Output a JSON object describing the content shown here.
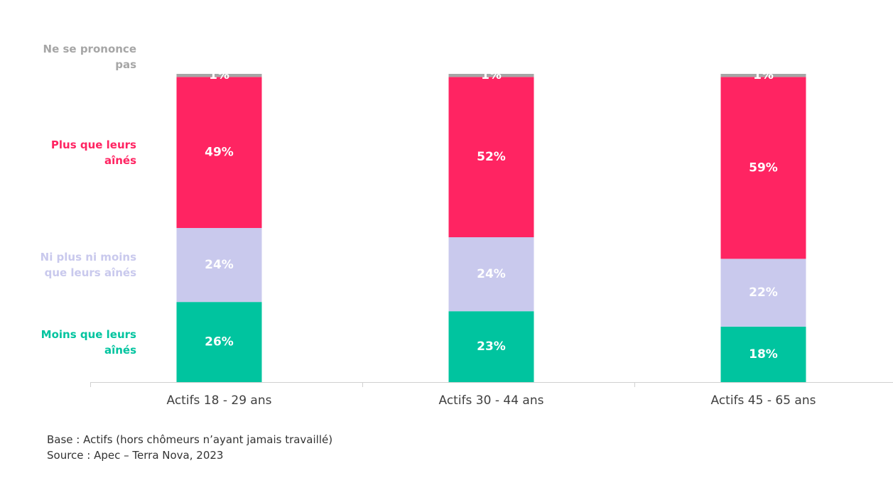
{
  "chart_data": {
    "type": "stacked-bar",
    "categories": [
      "Actifs 18 - 29 ans",
      "Actifs 30 - 44 ans",
      "Actifs 45 - 65 ans"
    ],
    "series": [
      {
        "name": "Moins que leurs aînés",
        "color": "#00c49f",
        "values": [
          26,
          23,
          18
        ],
        "value_labels": [
          "26%",
          "23%",
          "18%"
        ]
      },
      {
        "name": "Ni plus ni moins que leurs aînés",
        "color": "#c9c9ed",
        "values": [
          24,
          24,
          22
        ],
        "value_labels": [
          "24%",
          "24%",
          "22%"
        ]
      },
      {
        "name": "Plus que leurs aînés",
        "color": "#ff2462",
        "values": [
          49,
          52,
          59
        ],
        "value_labels": [
          "49%",
          "52%",
          "59%"
        ]
      },
      {
        "name": "Ne se prononce pas",
        "color": "#a6a6a6",
        "values": [
          1,
          1,
          1
        ],
        "value_labels": [
          "1%",
          "1%",
          "1%"
        ]
      }
    ],
    "ylim": [
      0,
      100
    ],
    "notes": [
      "Base : Actifs (hors chômeurs n’ayant jamais travaillé)",
      "Source : Apec – Terra Nova, 2023"
    ]
  }
}
